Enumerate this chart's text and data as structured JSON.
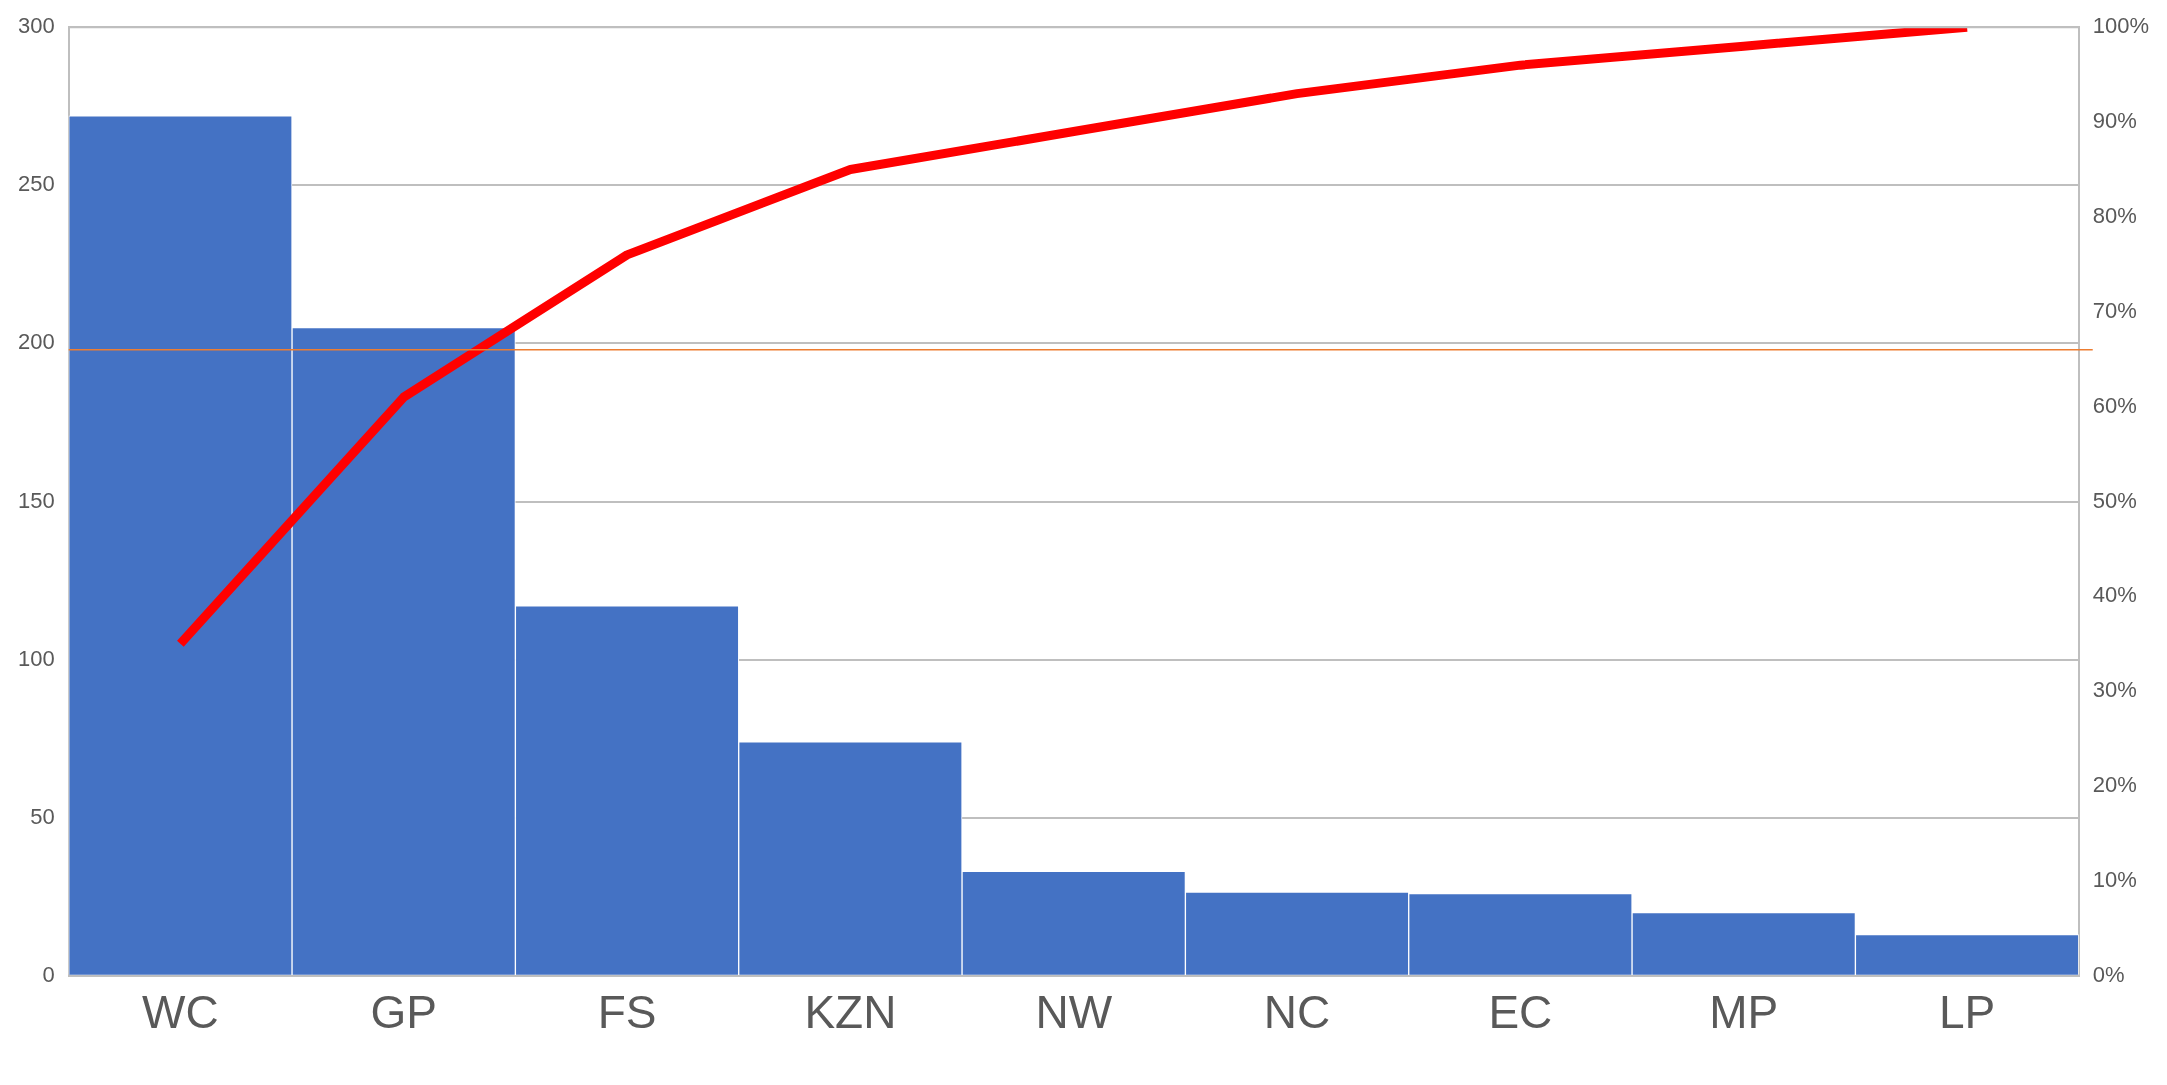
{
  "chart_data": {
    "type": "bar",
    "categories": [
      "WC",
      "GP",
      "FS",
      "KZN",
      "NW",
      "NC",
      "EC",
      "MP",
      "LP"
    ],
    "series": [
      {
        "color": "#4472c4",
        "values": [
          272,
          205,
          117,
          74,
          33,
          26.5,
          26,
          20,
          13
        ]
      },
      {
        "type": "line",
        "color": "#ff0000",
        "axis": "y2",
        "values": [
          35,
          61,
          76,
          85,
          89,
          93,
          96,
          98,
          100
        ]
      }
    ],
    "ylim": [
      0,
      300
    ],
    "yticks": [
      0,
      50,
      100,
      150,
      200,
      250,
      300
    ],
    "y2lim": [
      0,
      100
    ],
    "y2ticks": [
      {
        "value": 0,
        "label": "0%"
      },
      {
        "value": 10,
        "label": "10%"
      },
      {
        "value": 20,
        "label": "20%"
      },
      {
        "value": 30,
        "label": "30%"
      },
      {
        "value": 40,
        "label": "40%"
      },
      {
        "value": 50,
        "label": "50%"
      },
      {
        "value": 60,
        "label": "60%"
      },
      {
        "value": 70,
        "label": "70%"
      },
      {
        "value": 80,
        "label": "80%"
      },
      {
        "value": 90,
        "label": "90%"
      },
      {
        "value": 100,
        "label": "100%"
      }
    ],
    "ref_lines": [
      {
        "axis": "y2",
        "value": 66,
        "color": "#ed7d31"
      }
    ],
    "grid": "y",
    "legend": false,
    "marker": "none",
    "line_style": "solid"
  }
}
